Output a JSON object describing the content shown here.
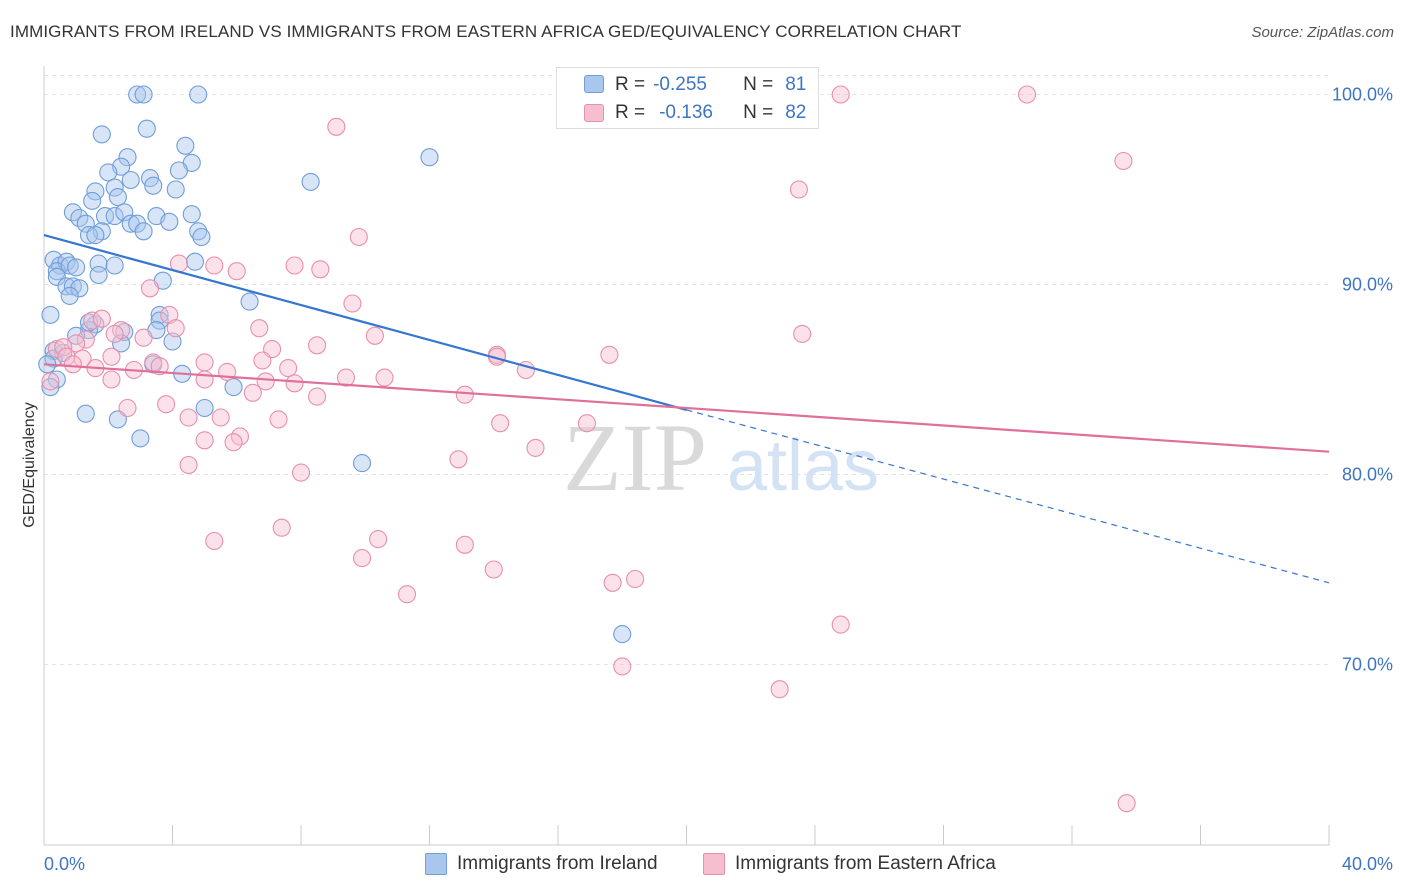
{
  "title": "IMMIGRANTS FROM IRELAND VS IMMIGRANTS FROM EASTERN AFRICA GED/EQUIVALENCY CORRELATION CHART",
  "source": "Source: ZipAtlas.com",
  "watermark": {
    "zip": "ZIP",
    "atlas": "atlas"
  },
  "colors": {
    "blue_fill": "#a8c6ee",
    "blue_stroke": "#6f9ed8",
    "blue_line": "#3576d0",
    "pink_fill": "#f6bfd0",
    "pink_stroke": "#e88fac",
    "pink_line": "#e0709a",
    "accent_text": "#3e74c4",
    "grid": "#e3e3e3"
  },
  "legend": {
    "rows": [
      {
        "r_label": "R =",
        "r_value": "-0.255",
        "n_label": "N =",
        "n_value": "81"
      },
      {
        "r_label": "R =",
        "r_value": "-0.136",
        "n_label": "N =",
        "n_value": "82"
      }
    ]
  },
  "chart_data": {
    "type": "scatter",
    "title": "IMMIGRANTS FROM IRELAND VS IMMIGRANTS FROM EASTERN AFRICA GED/EQUIVALENCY CORRELATION CHART",
    "xlabel": "",
    "ylabel": "GED/Equivalency",
    "xlim": [
      0,
      40
    ],
    "ylim": [
      60.5,
      101.5
    ],
    "x_tick_labels": [
      {
        "value": 0,
        "label": "0.0%"
      },
      {
        "value": 40,
        "label": "40.0%"
      }
    ],
    "y_tick_labels": [
      {
        "value": 100,
        "label": "100.0%"
      },
      {
        "value": 90,
        "label": "90.0%"
      },
      {
        "value": 80,
        "label": "80.0%"
      },
      {
        "value": 70,
        "label": "70.0%"
      }
    ],
    "grid": true,
    "legend_position": "top-center",
    "series": [
      {
        "name": "Immigrants from Ireland",
        "color": "#a8c6ee",
        "r": -0.255,
        "n": 81,
        "trend": {
          "x_start": 0,
          "y_start": 92.6,
          "x_end_solid": 20.0,
          "y_end_solid": 83.4,
          "x_end_dashed": 40.0,
          "y_end_dashed": 74.3
        },
        "points": [
          [
            2.9,
            100.0
          ],
          [
            3.1,
            100.0
          ],
          [
            4.8,
            100.0
          ],
          [
            3.2,
            98.2
          ],
          [
            1.8,
            97.9
          ],
          [
            4.4,
            97.3
          ],
          [
            2.6,
            96.7
          ],
          [
            2.4,
            96.2
          ],
          [
            4.6,
            96.4
          ],
          [
            12.0,
            96.7
          ],
          [
            2.0,
            95.9
          ],
          [
            3.3,
            95.6
          ],
          [
            2.7,
            95.5
          ],
          [
            4.2,
            96.0
          ],
          [
            8.3,
            95.4
          ],
          [
            2.2,
            95.1
          ],
          [
            1.6,
            94.9
          ],
          [
            3.4,
            95.2
          ],
          [
            4.1,
            95.0
          ],
          [
            2.3,
            94.6
          ],
          [
            1.5,
            94.4
          ],
          [
            0.9,
            93.8
          ],
          [
            1.1,
            93.5
          ],
          [
            1.9,
            93.6
          ],
          [
            2.2,
            93.6
          ],
          [
            2.5,
            93.8
          ],
          [
            3.5,
            93.6
          ],
          [
            4.6,
            93.7
          ],
          [
            1.3,
            93.2
          ],
          [
            1.8,
            92.8
          ],
          [
            2.7,
            93.2
          ],
          [
            2.9,
            93.2
          ],
          [
            3.1,
            92.8
          ],
          [
            3.9,
            93.3
          ],
          [
            1.4,
            92.6
          ],
          [
            1.6,
            92.6
          ],
          [
            4.8,
            92.8
          ],
          [
            4.9,
            92.5
          ],
          [
            0.3,
            91.3
          ],
          [
            0.5,
            91.0
          ],
          [
            0.7,
            91.2
          ],
          [
            0.4,
            90.7
          ],
          [
            0.8,
            91.0
          ],
          [
            1.0,
            90.9
          ],
          [
            1.7,
            91.1
          ],
          [
            2.2,
            91.0
          ],
          [
            0.4,
            90.4
          ],
          [
            1.7,
            90.5
          ],
          [
            4.7,
            91.2
          ],
          [
            3.7,
            90.2
          ],
          [
            0.7,
            89.9
          ],
          [
            0.9,
            89.9
          ],
          [
            1.1,
            89.8
          ],
          [
            0.8,
            89.4
          ],
          [
            6.4,
            89.1
          ],
          [
            0.2,
            88.4
          ],
          [
            3.6,
            88.4
          ],
          [
            3.6,
            88.1
          ],
          [
            1.6,
            87.9
          ],
          [
            1.4,
            87.6
          ],
          [
            1.0,
            87.3
          ],
          [
            2.5,
            87.5
          ],
          [
            3.5,
            87.6
          ],
          [
            2.4,
            86.9
          ],
          [
            0.3,
            86.5
          ],
          [
            0.6,
            86.4
          ],
          [
            0.3,
            86.1
          ],
          [
            0.1,
            85.8
          ],
          [
            3.4,
            85.8
          ],
          [
            4.3,
            85.3
          ],
          [
            5.9,
            84.6
          ],
          [
            0.4,
            85.0
          ],
          [
            0.2,
            84.6
          ],
          [
            5.0,
            83.5
          ],
          [
            1.3,
            83.2
          ],
          [
            2.3,
            82.9
          ],
          [
            3.0,
            81.9
          ],
          [
            9.9,
            80.6
          ],
          [
            18.0,
            71.6
          ],
          [
            1.4,
            88.0
          ],
          [
            4.0,
            87.0
          ]
        ]
      },
      {
        "name": "Immigrants from Eastern Africa",
        "color": "#f6bfd0",
        "r": -0.136,
        "n": 82,
        "trend": {
          "x_start": 0,
          "y_start": 85.8,
          "x_end": 40.0,
          "y_end": 81.2
        },
        "points": [
          [
            24.8,
            100.0
          ],
          [
            30.6,
            100.0
          ],
          [
            9.1,
            98.3
          ],
          [
            33.6,
            96.5
          ],
          [
            23.5,
            95.0
          ],
          [
            9.8,
            92.5
          ],
          [
            4.2,
            91.1
          ],
          [
            5.3,
            91.0
          ],
          [
            7.8,
            91.0
          ],
          [
            6.0,
            90.7
          ],
          [
            8.6,
            90.8
          ],
          [
            3.3,
            89.8
          ],
          [
            9.6,
            89.0
          ],
          [
            1.5,
            88.1
          ],
          [
            3.9,
            88.4
          ],
          [
            4.1,
            87.7
          ],
          [
            6.7,
            87.7
          ],
          [
            2.4,
            87.6
          ],
          [
            3.1,
            87.2
          ],
          [
            1.3,
            87.1
          ],
          [
            1.0,
            86.9
          ],
          [
            10.3,
            87.3
          ],
          [
            23.6,
            87.4
          ],
          [
            0.4,
            86.6
          ],
          [
            0.6,
            86.7
          ],
          [
            8.5,
            86.8
          ],
          [
            7.1,
            86.6
          ],
          [
            14.1,
            86.3
          ],
          [
            14.1,
            86.2
          ],
          [
            17.6,
            86.3
          ],
          [
            0.7,
            86.2
          ],
          [
            1.2,
            86.1
          ],
          [
            2.1,
            86.2
          ],
          [
            3.4,
            85.9
          ],
          [
            3.6,
            85.7
          ],
          [
            1.6,
            85.6
          ],
          [
            5.0,
            85.9
          ],
          [
            0.9,
            85.8
          ],
          [
            5.7,
            85.4
          ],
          [
            7.6,
            85.6
          ],
          [
            2.8,
            85.5
          ],
          [
            9.4,
            85.1
          ],
          [
            10.6,
            85.1
          ],
          [
            2.1,
            85.0
          ],
          [
            6.9,
            84.9
          ],
          [
            5.0,
            85.0
          ],
          [
            7.8,
            84.8
          ],
          [
            0.2,
            84.9
          ],
          [
            6.5,
            84.3
          ],
          [
            8.5,
            84.1
          ],
          [
            13.1,
            84.2
          ],
          [
            3.8,
            83.7
          ],
          [
            2.6,
            83.5
          ],
          [
            4.5,
            83.0
          ],
          [
            7.3,
            82.9
          ],
          [
            5.5,
            83.0
          ],
          [
            14.2,
            82.7
          ],
          [
            16.9,
            82.7
          ],
          [
            6.1,
            82.0
          ],
          [
            5.9,
            81.7
          ],
          [
            5.0,
            81.8
          ],
          [
            15.3,
            81.4
          ],
          [
            12.9,
            80.8
          ],
          [
            4.5,
            80.5
          ],
          [
            8.0,
            80.1
          ],
          [
            7.4,
            77.2
          ],
          [
            5.3,
            76.5
          ],
          [
            10.4,
            76.6
          ],
          [
            13.1,
            76.3
          ],
          [
            9.9,
            75.6
          ],
          [
            14.0,
            75.0
          ],
          [
            17.7,
            74.3
          ],
          [
            18.4,
            74.5
          ],
          [
            11.3,
            73.7
          ],
          [
            24.8,
            72.1
          ],
          [
            18.0,
            69.9
          ],
          [
            22.9,
            68.7
          ],
          [
            33.7,
            62.7
          ],
          [
            1.8,
            88.2
          ],
          [
            2.2,
            87.4
          ],
          [
            6.8,
            86.0
          ],
          [
            15.0,
            85.5
          ]
        ]
      }
    ]
  },
  "bottom_legend": {
    "items": [
      {
        "label": "Immigrants from Ireland"
      },
      {
        "label": "Immigrants from Eastern Africa"
      }
    ]
  }
}
